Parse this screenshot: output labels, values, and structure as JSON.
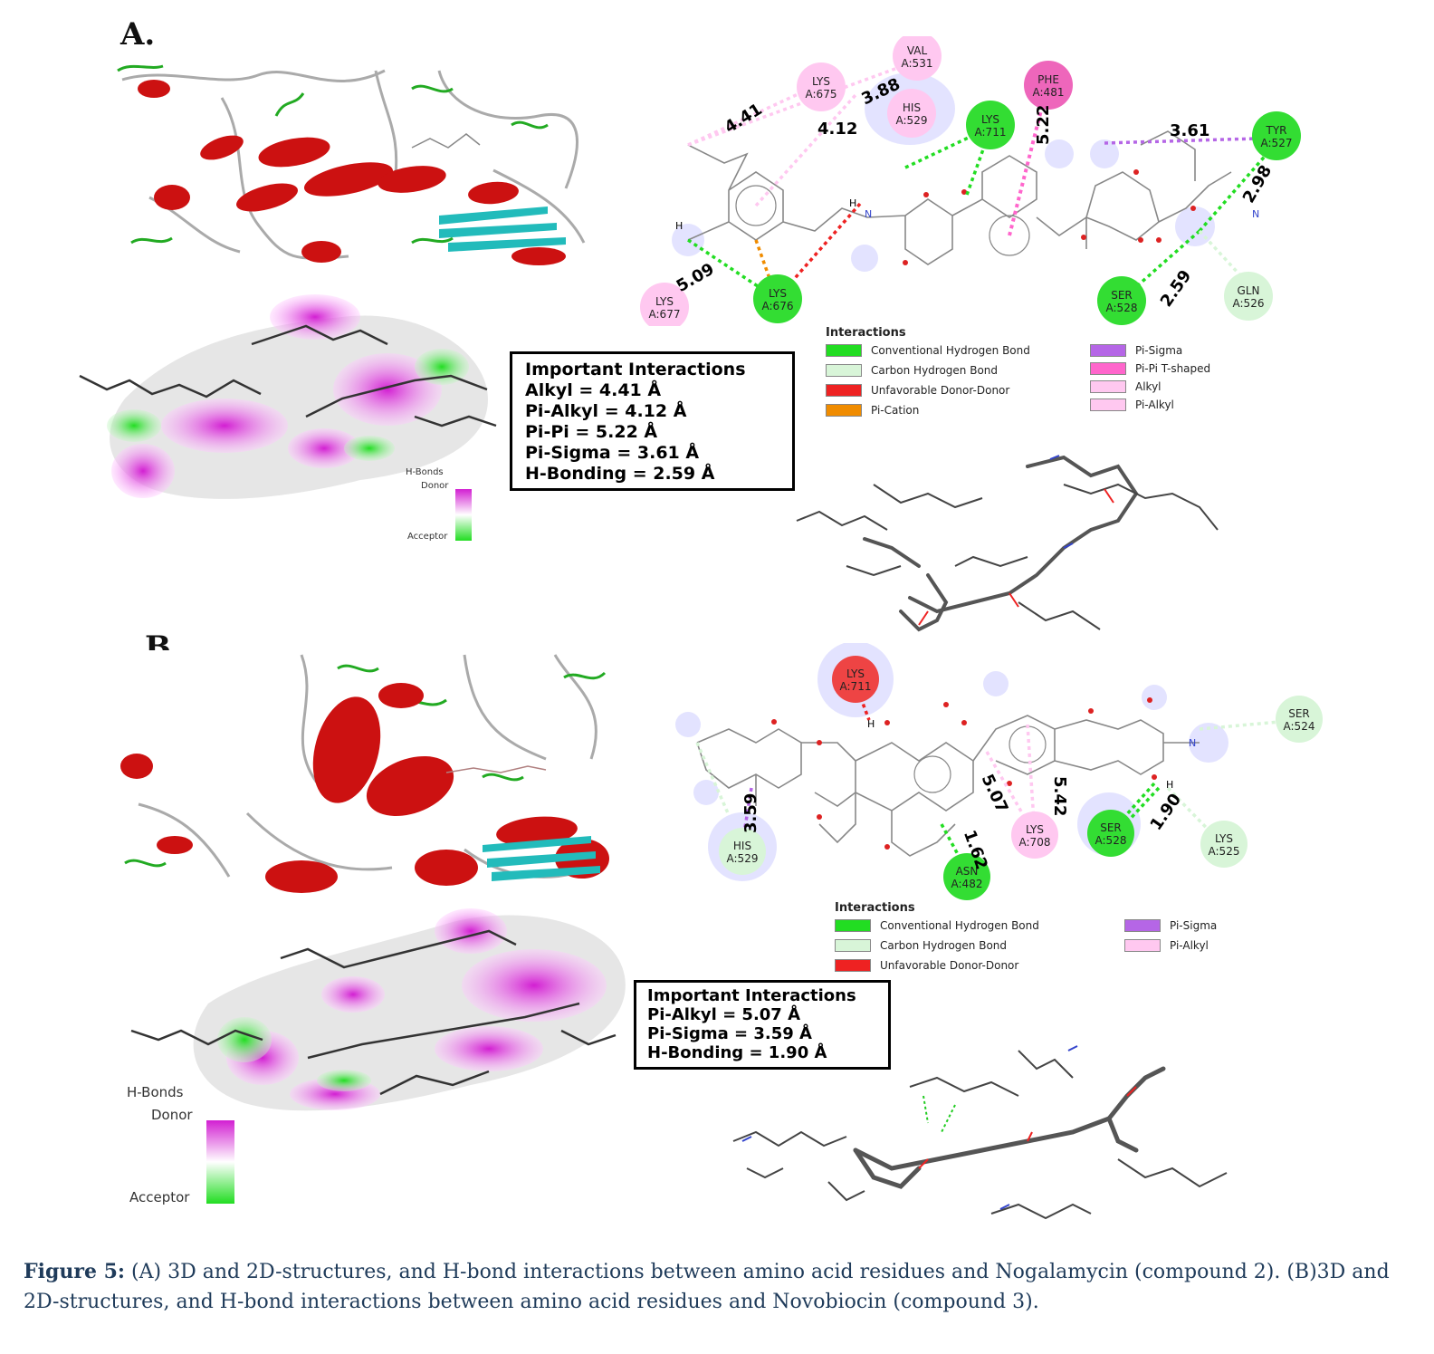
{
  "panels": [
    {
      "label": "A.",
      "interaction_box": {
        "title": "Important Interactions",
        "lines": [
          "Alkyl = 4.41 Å",
          "Pi-Alkyl = 4.12  Å",
          "Pi-Pi = 5.22  Å",
          "Pi-Sigma = 3.61  Å",
          "H-Bonding = 2.59 Å"
        ]
      },
      "legend": {
        "title": "Interactions",
        "items": [
          {
            "label": "Conventional Hydrogen Bond",
            "color": "#22dd22"
          },
          {
            "label": "Carbon Hydrogen Bond",
            "color": "#d8f5d8"
          },
          {
            "label": "Unfavorable Donor-Donor",
            "color": "#ee2222"
          },
          {
            "label": "Pi-Cation",
            "color": "#f08c00"
          },
          {
            "label": "Pi-Sigma",
            "color": "#b566e6"
          },
          {
            "label": "Pi-Pi T-shaped",
            "color": "#ff66cc"
          },
          {
            "label": "Alkyl",
            "color": "#ffc8f0"
          },
          {
            "label": "Pi-Alkyl",
            "color": "#ffc8f0"
          }
        ]
      },
      "hbonds_legend": {
        "title": "H-Bonds",
        "donor": "Donor",
        "acceptor": "Acceptor"
      },
      "residues": [
        {
          "name": "VAL",
          "id": "A:531"
        },
        {
          "name": "LYS",
          "id": "A:675"
        },
        {
          "name": "HIS",
          "id": "A:529"
        },
        {
          "name": "PHE",
          "id": "A:481"
        },
        {
          "name": "LYS",
          "id": "A:711"
        },
        {
          "name": "TYR",
          "id": "A:527"
        },
        {
          "name": "LYS",
          "id": "A:677"
        },
        {
          "name": "LYS",
          "id": "A:676"
        },
        {
          "name": "SER",
          "id": "A:528"
        },
        {
          "name": "GLN",
          "id": "A:526"
        }
      ],
      "distances": [
        "4.41",
        "3.88",
        "4.12",
        "5.22",
        "3.61",
        "2.98",
        "5.09",
        "2.59"
      ]
    },
    {
      "label": "B.",
      "interaction_box": {
        "title": "Important Interactions",
        "lines": [
          "Pi-Alkyl = 5.07  Å",
          "Pi-Sigma = 3.59  Å",
          "H-Bonding = 1.90 Å"
        ]
      },
      "legend": {
        "title": "Interactions",
        "items": [
          {
            "label": "Conventional Hydrogen Bond",
            "color": "#22dd22"
          },
          {
            "label": "Carbon Hydrogen Bond",
            "color": "#d8f5d8"
          },
          {
            "label": "Unfavorable Donor-Donor",
            "color": "#ee2222"
          },
          {
            "label": "Pi-Sigma",
            "color": "#b566e6"
          },
          {
            "label": "Pi-Alkyl",
            "color": "#ffc8f0"
          }
        ]
      },
      "hbonds_legend": {
        "title": "H-Bonds",
        "donor": "Donor",
        "acceptor": "Acceptor"
      },
      "residues": [
        {
          "name": "LYS",
          "id": "A:711"
        },
        {
          "name": "SER",
          "id": "A:524"
        },
        {
          "name": "HIS",
          "id": "A:529"
        },
        {
          "name": "LYS",
          "id": "A:708"
        },
        {
          "name": "SER",
          "id": "A:528"
        },
        {
          "name": "LYS",
          "id": "A:525"
        },
        {
          "name": "ASN",
          "id": "A:482"
        }
      ],
      "distances": [
        "3.59",
        "5.07",
        "5.42",
        "1.90",
        "1.62"
      ]
    }
  ],
  "atom_labels": {
    "h": "H",
    "n": "N"
  },
  "caption": {
    "lead": "Figure 5:",
    "text": " (A) 3D and 2D-structures, and H-bond interactions between amino acid residues and Nogalamycin (compound 2). (B)3D and 2D-structures, and H-bond interactions between amino acid residues and Novobiocin (compound 3)."
  }
}
